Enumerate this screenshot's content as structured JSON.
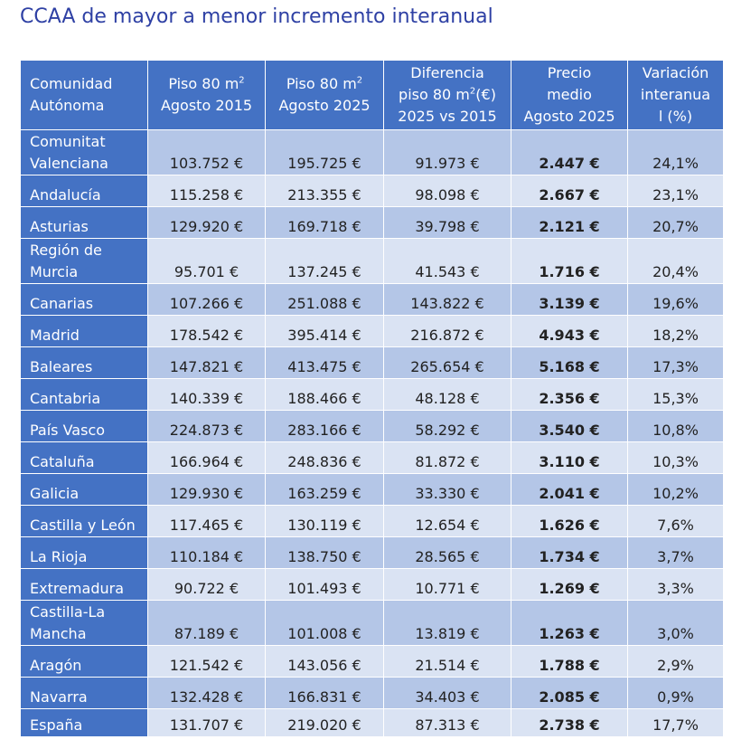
{
  "title": "CCAA de mayor a menor incremento interanual",
  "headers": {
    "region_l1": "Comunidad",
    "region_l2": "Autónoma",
    "piso2015_l1": "Piso 80 m",
    "piso2015_sup": "2",
    "piso2015_l2": "Agosto 2015",
    "piso2025_l1": "Piso 80 m",
    "piso2025_sup": "2",
    "piso2025_l2": "Agosto 2025",
    "dif_l1": "Diferencia",
    "dif_l2a": "piso 80 m",
    "dif_sup": "2",
    "dif_l2b": "(€)",
    "dif_l3": "2025 vs 2015",
    "precio_l1": "Precio",
    "precio_l2": "medio",
    "precio_l3": "Agosto 2025",
    "var_l1": "Variación",
    "var_l2": "interanua",
    "var_l3": "l (%)"
  },
  "rows": [
    {
      "region1": "Comunitat",
      "region2": "Valenciana",
      "p2015": "103.752 €",
      "p2025": "195.725 €",
      "dif": "91.973 €",
      "precio": "2.447 €",
      "var": "24,1%"
    },
    {
      "region1": "Andalucía",
      "p2015": "115.258 €",
      "p2025": "213.355 €",
      "dif": "98.098 €",
      "precio": "2.667 €",
      "var": "23,1%"
    },
    {
      "region1": "Asturias",
      "p2015": "129.920 €",
      "p2025": "169.718 €",
      "dif": "39.798 €",
      "precio": "2.121 €",
      "var": "20,7%"
    },
    {
      "region1": "Región de",
      "region2": "Murcia",
      "p2015": "95.701 €",
      "p2025": "137.245 €",
      "dif": "41.543 €",
      "precio": "1.716 €",
      "var": "20,4%"
    },
    {
      "region1": "Canarias",
      "p2015": "107.266 €",
      "p2025": "251.088 €",
      "dif": "143.822 €",
      "precio": "3.139 €",
      "var": "19,6%"
    },
    {
      "region1": "Madrid",
      "p2015": "178.542 €",
      "p2025": "395.414 €",
      "dif": "216.872 €",
      "precio": "4.943 €",
      "var": "18,2%"
    },
    {
      "region1": "Baleares",
      "p2015": "147.821 €",
      "p2025": "413.475 €",
      "dif": "265.654 €",
      "precio": "5.168 €",
      "var": "17,3%"
    },
    {
      "region1": "Cantabria",
      "p2015": "140.339 €",
      "p2025": "188.466 €",
      "dif": "48.128 €",
      "precio": "2.356 €",
      "var": "15,3%"
    },
    {
      "region1": "País Vasco",
      "p2015": "224.873 €",
      "p2025": "283.166 €",
      "dif": "58.292 €",
      "precio": "3.540 €",
      "var": "10,8%"
    },
    {
      "region1": "Cataluña",
      "p2015": "166.964 €",
      "p2025": "248.836 €",
      "dif": "81.872 €",
      "precio": "3.110 €",
      "var": "10,3%"
    },
    {
      "region1": "Galicia",
      "p2015": "129.930 €",
      "p2025": "163.259 €",
      "dif": "33.330 €",
      "precio": "2.041 €",
      "var": "10,2%"
    },
    {
      "region1": "Castilla y León",
      "p2015": "117.465 €",
      "p2025": "130.119 €",
      "dif": "12.654 €",
      "precio": "1.626 €",
      "var": "7,6%"
    },
    {
      "region1": "La Rioja",
      "p2015": "110.184 €",
      "p2025": "138.750 €",
      "dif": "28.565 €",
      "precio": "1.734 €",
      "var": "3,7%"
    },
    {
      "region1": "Extremadura",
      "p2015": "90.722 €",
      "p2025": "101.493 €",
      "dif": "10.771 €",
      "precio": "1.269 €",
      "var": "3,3%"
    },
    {
      "region1": "Castilla-La",
      "region2": "Mancha",
      "p2015": "87.189 €",
      "p2025": "101.008 €",
      "dif": "13.819 €",
      "precio": "1.263 €",
      "var": "3,0%"
    },
    {
      "region1": "Aragón",
      "p2015": "121.542 €",
      "p2025": "143.056 €",
      "dif": "21.514 €",
      "precio": "1.788 €",
      "var": "2,9%"
    },
    {
      "region1": "Navarra",
      "p2015": "132.428 €",
      "p2025": "166.831 €",
      "dif": "34.403 €",
      "precio": "2.085 €",
      "var": "0,9%"
    },
    {
      "region1": "España",
      "p2015": "131.707 €",
      "p2025": "219.020 €",
      "dif": "87.313 €",
      "precio": "2.738 €",
      "var": "17,7%"
    }
  ]
}
